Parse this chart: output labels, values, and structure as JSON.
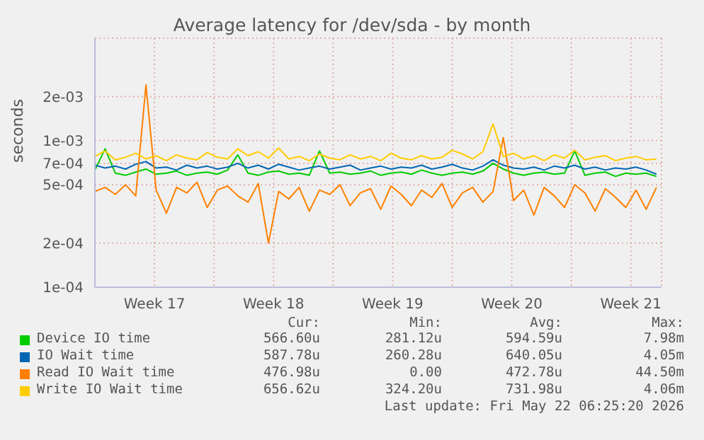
{
  "chart_data": {
    "type": "line",
    "title": "Average latency for /dev/sda - by month",
    "ylabel": "seconds",
    "x": [
      "2026-04-20T00:00",
      "2026-04-20T14:24",
      "2026-04-21T04:48",
      "2026-04-21T19:12",
      "2026-04-22T09:36",
      "2026-04-23T00:00",
      "2026-04-23T14:24",
      "2026-04-24T04:48",
      "2026-04-24T19:12",
      "2026-04-25T09:36",
      "2026-04-26T00:00",
      "2026-04-26T14:24",
      "2026-04-27T04:48",
      "2026-04-27T19:12",
      "2026-04-28T09:36",
      "2026-04-29T00:00",
      "2026-04-29T14:24",
      "2026-04-30T04:48",
      "2026-04-30T19:12",
      "2026-05-01T09:36",
      "2026-05-02T00:00",
      "2026-05-02T14:24",
      "2026-05-03T04:48",
      "2026-05-03T19:12",
      "2026-05-04T09:36",
      "2026-05-05T00:00",
      "2026-05-05T14:24",
      "2026-05-06T04:48",
      "2026-05-06T19:12",
      "2026-05-07T09:36",
      "2026-05-08T00:00",
      "2026-05-08T14:24",
      "2026-05-09T04:48",
      "2026-05-09T19:12",
      "2026-05-10T09:36",
      "2026-05-11T00:00",
      "2026-05-11T14:24",
      "2026-05-12T04:48",
      "2026-05-12T19:12",
      "2026-05-13T09:36",
      "2026-05-14T00:00",
      "2026-05-14T14:24",
      "2026-05-15T04:48",
      "2026-05-15T19:12",
      "2026-05-16T09:36",
      "2026-05-17T00:00",
      "2026-05-17T14:24",
      "2026-05-18T04:48",
      "2026-05-18T19:12",
      "2026-05-19T09:36",
      "2026-05-20T00:00",
      "2026-05-20T14:24",
      "2026-05-21T04:48",
      "2026-05-21T19:12",
      "2026-05-22T09:36",
      "2026-05-23T00:00"
    ],
    "xlim": [
      "2026-04-20T00:00",
      "2026-05-23T07:12"
    ],
    "xticks": [
      {
        "value": "2026-04-23T12:00",
        "label": "Week 17"
      },
      {
        "value": "2026-04-27T00:00",
        "label": null
      },
      {
        "value": "2026-04-30T12:00",
        "label": "Week 18"
      },
      {
        "value": "2026-05-04T00:00",
        "label": null
      },
      {
        "value": "2026-05-07T12:00",
        "label": "Week 19"
      },
      {
        "value": "2026-05-11T00:00",
        "label": null
      },
      {
        "value": "2026-05-14T12:00",
        "label": "Week 20"
      },
      {
        "value": "2026-05-18T00:00",
        "label": null
      },
      {
        "value": "2026-05-21T12:00",
        "label": "Week 21"
      }
    ],
    "ylim": [
      0.0001,
      0.005
    ],
    "yticks": [
      {
        "value": 0.0001,
        "label": "1e-04"
      },
      {
        "value": 0.0002,
        "label": "2e-04"
      },
      {
        "value": 0.0005,
        "label": "5e-04"
      },
      {
        "value": 0.0007,
        "label": "7e-04"
      },
      {
        "value": 0.001,
        "label": "1e-03"
      },
      {
        "value": 0.002,
        "label": "2e-03"
      }
    ],
    "log": "y",
    "grid": true,
    "legend": "bottom",
    "marker": "none",
    "line_style": "solid",
    "series": [
      {
        "name": "Device IO time",
        "color": "#00cc00",
        "values": [
          0.00063,
          0.00088,
          0.0006,
          0.00058,
          0.00061,
          0.00064,
          0.00059,
          0.0006,
          0.00062,
          0.00058,
          0.0006,
          0.00061,
          0.00059,
          0.00063,
          0.0008,
          0.0006,
          0.00058,
          0.00061,
          0.00062,
          0.00059,
          0.0006,
          0.00058,
          0.00085,
          0.0006,
          0.00061,
          0.00059,
          0.0006,
          0.00062,
          0.00058,
          0.0006,
          0.00061,
          0.00059,
          0.00063,
          0.0006,
          0.00058,
          0.0006,
          0.00061,
          0.00059,
          0.00062,
          0.0007,
          0.00064,
          0.0006,
          0.00058,
          0.0006,
          0.00061,
          0.00059,
          0.0006,
          0.00085,
          0.00058,
          0.0006,
          0.00061,
          0.00057,
          0.0006,
          0.00059,
          0.0006,
          0.00057
        ]
      },
      {
        "name": "IO Wait time",
        "color": "#0066b3",
        "values": [
          0.00068,
          0.00065,
          0.00067,
          0.00064,
          0.00069,
          0.00072,
          0.00065,
          0.00066,
          0.00063,
          0.00068,
          0.00065,
          0.00067,
          0.00064,
          0.00066,
          0.0007,
          0.00065,
          0.00068,
          0.00064,
          0.00069,
          0.00066,
          0.00063,
          0.00065,
          0.00067,
          0.00064,
          0.00066,
          0.00068,
          0.00063,
          0.00065,
          0.00067,
          0.00064,
          0.00066,
          0.00065,
          0.00068,
          0.00064,
          0.00066,
          0.00069,
          0.00065,
          0.00063,
          0.00067,
          0.00074,
          0.00068,
          0.00065,
          0.00064,
          0.00066,
          0.00063,
          0.00067,
          0.00065,
          0.00068,
          0.00064,
          0.00066,
          0.00063,
          0.00065,
          0.00064,
          0.00066,
          0.00063,
          0.00059
        ]
      },
      {
        "name": "Read IO Wait time",
        "color": "#ff8000",
        "values": [
          0.00045,
          0.00048,
          0.00043,
          0.0005,
          0.00042,
          0.0024,
          0.00046,
          0.00032,
          0.00048,
          0.00044,
          0.00052,
          0.00035,
          0.00046,
          0.00049,
          0.00042,
          0.00038,
          0.00051,
          0.0002,
          0.00045,
          0.0004,
          0.00048,
          0.00033,
          0.00046,
          0.00043,
          0.0005,
          0.00036,
          0.00044,
          0.00047,
          0.00034,
          0.00049,
          0.00043,
          0.00036,
          0.00046,
          0.00041,
          0.00051,
          0.00035,
          0.00044,
          0.00048,
          0.00038,
          0.00045,
          0.00105,
          0.00039,
          0.00046,
          0.00031,
          0.00048,
          0.00042,
          0.00035,
          0.0005,
          0.00044,
          0.00033,
          0.00047,
          0.00041,
          0.00035,
          0.00046,
          0.00034,
          0.00048
        ]
      },
      {
        "name": "Write IO Wait time",
        "color": "#ffcc00",
        "values": [
          0.00078,
          0.00085,
          0.00074,
          0.00077,
          0.00082,
          0.00075,
          0.00079,
          0.00073,
          0.0008,
          0.00076,
          0.00074,
          0.00083,
          0.00077,
          0.00075,
          0.00088,
          0.00079,
          0.00084,
          0.00076,
          0.00089,
          0.00075,
          0.00078,
          0.00073,
          0.00081,
          0.00076,
          0.00074,
          0.0008,
          0.00075,
          0.00078,
          0.00073,
          0.00082,
          0.00076,
          0.00074,
          0.00079,
          0.00075,
          0.00077,
          0.00086,
          0.00081,
          0.00075,
          0.00084,
          0.0013,
          0.00078,
          0.00082,
          0.00075,
          0.00079,
          0.00073,
          0.0008,
          0.00076,
          0.00086,
          0.00074,
          0.00077,
          0.00079,
          0.00073,
          0.00076,
          0.00078,
          0.00074,
          0.00075
        ]
      }
    ],
    "annotations": [
      "Cur:",
      "Min:",
      "Avg:",
      "Max:",
      "566.60u",
      "281.12u",
      "594.59u",
      "7.98m",
      "587.78u",
      "260.28u",
      "640.05u",
      "4.05m",
      "476.98u",
      "0.00",
      "472.78u",
      "44.50m",
      "656.62u",
      "324.20u",
      "731.98u",
      "4.06m",
      "Last update: Fri May 22 06:25:20 2026"
    ]
  }
}
